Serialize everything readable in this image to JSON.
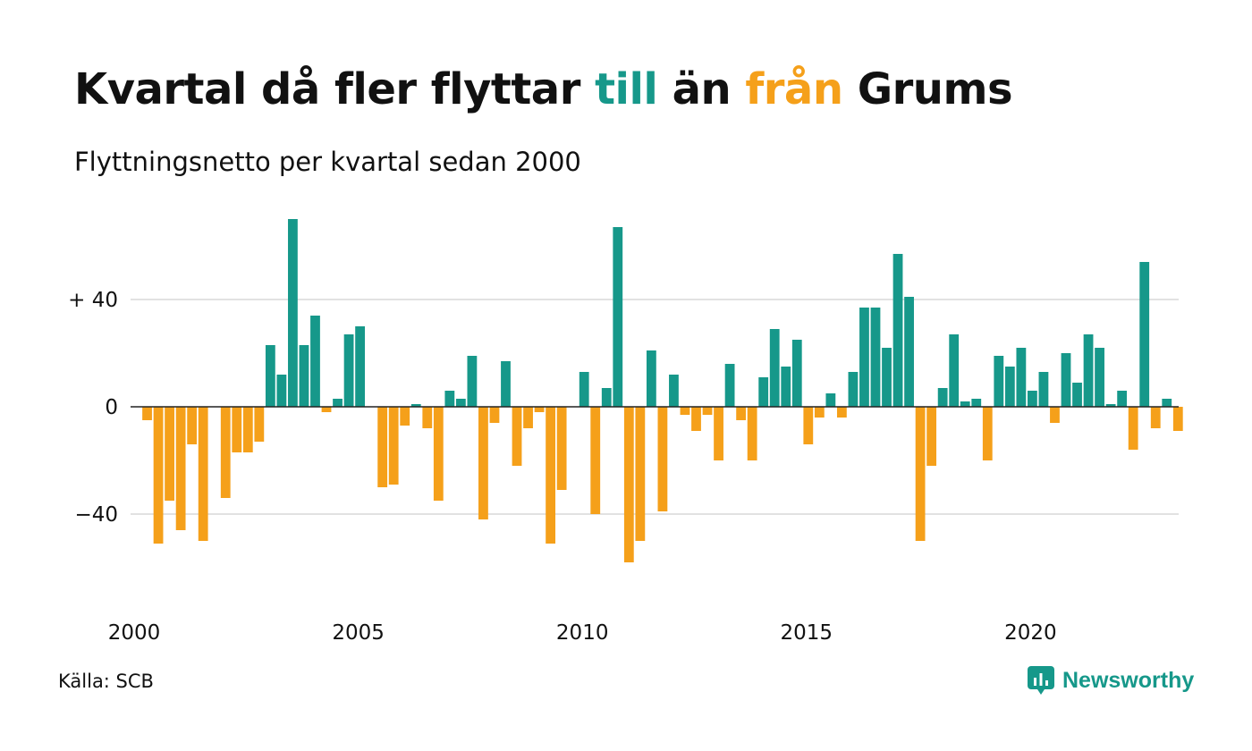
{
  "title": {
    "before": "Kvartal då fler flyttar ",
    "word_in": "till",
    "middle": " än ",
    "word_out": "från",
    "after": " Grums"
  },
  "subtitle": "Flyttningsnetto per kvartal sedan 2000",
  "source": "Källa: SCB",
  "brand": {
    "name": "Newsworthy",
    "icon": "newsworthy-logo-icon"
  },
  "colors": {
    "positive": "#16988a",
    "negative": "#f5a01a",
    "grid": "#e2e2e2",
    "axis": "#222222"
  },
  "chart_data": {
    "type": "bar",
    "title": "Kvartal då fler flyttar till än från Grums",
    "subtitle": "Flyttningsnetto per kvartal sedan 2000",
    "x_unit": "quarter",
    "x_start": "2000 Q1",
    "x_ticks": [
      2000,
      2005,
      2010,
      2015,
      2020
    ],
    "y_ticks": [
      {
        "value": 40,
        "label": "+ 40"
      },
      {
        "value": 0,
        "label": "0"
      },
      {
        "value": -40,
        "label": "−40"
      }
    ],
    "ylim": [
      -62,
      72
    ],
    "grid": true,
    "categories": [
      "2000 Q1",
      "2000 Q2",
      "2000 Q3",
      "2000 Q4",
      "2001 Q1",
      "2001 Q2",
      "2001 Q3",
      "2001 Q4",
      "2002 Q1",
      "2002 Q2",
      "2002 Q3",
      "2002 Q4",
      "2003 Q1",
      "2003 Q2",
      "2003 Q3",
      "2003 Q4",
      "2004 Q1",
      "2004 Q2",
      "2004 Q3",
      "2004 Q4",
      "2005 Q1",
      "2005 Q2",
      "2005 Q3",
      "2005 Q4",
      "2006 Q1",
      "2006 Q2",
      "2006 Q3",
      "2006 Q4",
      "2007 Q1",
      "2007 Q2",
      "2007 Q3",
      "2007 Q4",
      "2008 Q1",
      "2008 Q2",
      "2008 Q3",
      "2008 Q4",
      "2009 Q1",
      "2009 Q2",
      "2009 Q3",
      "2009 Q4",
      "2010 Q1",
      "2010 Q2",
      "2010 Q3",
      "2010 Q4",
      "2011 Q1",
      "2011 Q2",
      "2011 Q3",
      "2011 Q4",
      "2012 Q1",
      "2012 Q2",
      "2012 Q3",
      "2012 Q4",
      "2013 Q1",
      "2013 Q2",
      "2013 Q3",
      "2013 Q4",
      "2014 Q1",
      "2014 Q2",
      "2014 Q3",
      "2014 Q4",
      "2015 Q1",
      "2015 Q2",
      "2015 Q3",
      "2015 Q4",
      "2016 Q1",
      "2016 Q2",
      "2016 Q3",
      "2016 Q4",
      "2017 Q1",
      "2017 Q2",
      "2017 Q3",
      "2017 Q4",
      "2018 Q1",
      "2018 Q2",
      "2018 Q3",
      "2018 Q4",
      "2019 Q1",
      "2019 Q2",
      "2019 Q3",
      "2019 Q4",
      "2020 Q1",
      "2020 Q2",
      "2020 Q3",
      "2020 Q4",
      "2021 Q1",
      "2021 Q2",
      "2021 Q3",
      "2021 Q4",
      "2022 Q1",
      "2022 Q2",
      "2022 Q3",
      "2022 Q4",
      "2023 Q1",
      "2023 Q2",
      "2023 Q3",
      "2023 Q4"
    ],
    "values": [
      null,
      -5,
      -51,
      -35,
      -46,
      -14,
      -50,
      null,
      -34,
      -17,
      -17,
      -13,
      23,
      12,
      70,
      23,
      34,
      -2,
      3,
      27,
      30,
      null,
      -30,
      -29,
      -7,
      1,
      -8,
      -35,
      6,
      3,
      19,
      -42,
      -6,
      17,
      -22,
      -8,
      -2,
      -51,
      -31,
      null,
      13,
      -40,
      7,
      67,
      -58,
      -50,
      21,
      -39,
      12,
      -3,
      -9,
      -3,
      -20,
      16,
      -5,
      -20,
      11,
      29,
      15,
      25,
      -14,
      -4,
      5,
      -4,
      13,
      37,
      37,
      22,
      57,
      41,
      -50,
      -22,
      7,
      27,
      2,
      3,
      -20,
      19,
      15,
      22,
      6,
      13,
      -6,
      20,
      9,
      27,
      22,
      1,
      6,
      -16,
      54,
      -8,
      3,
      -9,
      null,
      null
    ]
  }
}
